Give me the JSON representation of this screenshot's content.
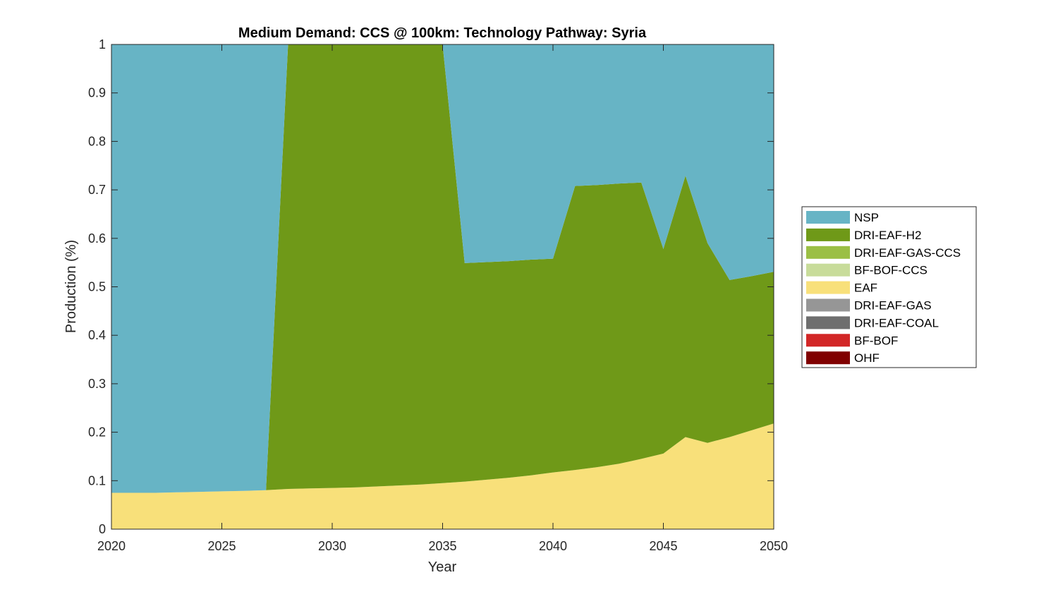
{
  "chart_data": {
    "type": "area",
    "stacked": true,
    "title": "Medium Demand: CCS @ 100km: Technology Pathway: Syria",
    "xlabel": "Year",
    "ylabel": "Production (%)",
    "xlim": [
      2020,
      2050
    ],
    "ylim": [
      0,
      1
    ],
    "xticks": [
      "2020",
      "2025",
      "2030",
      "2035",
      "2040",
      "2045",
      "2050"
    ],
    "yticks": [
      "0",
      "0.1",
      "0.2",
      "0.3",
      "0.4",
      "0.5",
      "0.6",
      "0.7",
      "0.8",
      "0.9",
      "1"
    ],
    "grid": false,
    "legend_placement": "right-outside",
    "x": [
      2020,
      2021,
      2022,
      2023,
      2024,
      2025,
      2026,
      2027,
      2028,
      2029,
      2030,
      2031,
      2032,
      2033,
      2034,
      2035,
      2036,
      2037,
      2038,
      2039,
      2040,
      2041,
      2042,
      2043,
      2044,
      2045,
      2046,
      2047,
      2048,
      2049,
      2050
    ],
    "series": [
      {
        "name": "OHF",
        "color": "#800000",
        "values": [
          0,
          0,
          0,
          0,
          0,
          0,
          0,
          0,
          0,
          0,
          0,
          0,
          0,
          0,
          0,
          0,
          0,
          0,
          0,
          0,
          0,
          0,
          0,
          0,
          0,
          0,
          0,
          0,
          0,
          0,
          0
        ]
      },
      {
        "name": "BF-BOF",
        "color": "#d22626",
        "values": [
          0,
          0,
          0,
          0,
          0,
          0,
          0,
          0,
          0,
          0,
          0,
          0,
          0,
          0,
          0,
          0,
          0,
          0,
          0,
          0,
          0,
          0,
          0,
          0,
          0,
          0,
          0,
          0,
          0,
          0,
          0
        ]
      },
      {
        "name": "DRI-EAF-COAL",
        "color": "#6e6e6e",
        "values": [
          0,
          0,
          0,
          0,
          0,
          0,
          0,
          0,
          0,
          0,
          0,
          0,
          0,
          0,
          0,
          0,
          0,
          0,
          0,
          0,
          0,
          0,
          0,
          0,
          0,
          0,
          0,
          0,
          0,
          0,
          0
        ]
      },
      {
        "name": "DRI-EAF-GAS",
        "color": "#969696",
        "values": [
          0,
          0,
          0,
          0,
          0,
          0,
          0,
          0,
          0,
          0,
          0,
          0,
          0,
          0,
          0,
          0,
          0,
          0,
          0,
          0,
          0,
          0,
          0,
          0,
          0,
          0,
          0,
          0,
          0,
          0,
          0
        ]
      },
      {
        "name": "EAF",
        "color": "#f8e07a",
        "values": [
          0.075,
          0.075,
          0.075,
          0.076,
          0.077,
          0.078,
          0.079,
          0.0805,
          0.083,
          0.084,
          0.085,
          0.086,
          0.088,
          0.09,
          0.092,
          0.095,
          0.098,
          0.102,
          0.106,
          0.111,
          0.117,
          0.122,
          0.128,
          0.135,
          0.145,
          0.156,
          0.19,
          0.178,
          0.19,
          0.204,
          0.218
        ]
      },
      {
        "name": "BF-BOF-CCS",
        "color": "#c8dc9a",
        "values": [
          0,
          0,
          0,
          0,
          0,
          0,
          0,
          0,
          0,
          0,
          0,
          0,
          0,
          0,
          0,
          0,
          0,
          0,
          0,
          0,
          0,
          0,
          0,
          0,
          0,
          0,
          0,
          0,
          0,
          0,
          0
        ]
      },
      {
        "name": "DRI-EAF-GAS-CCS",
        "color": "#9bbf45",
        "values": [
          0,
          0,
          0,
          0,
          0,
          0,
          0,
          0,
          0,
          0,
          0,
          0,
          0,
          0,
          0,
          0,
          0,
          0,
          0,
          0,
          0,
          0,
          0,
          0,
          0,
          0,
          0,
          0,
          0,
          0,
          0
        ]
      },
      {
        "name": "DRI-EAF-H2",
        "color": "#6f9918",
        "values": [
          0,
          0,
          0,
          0,
          0,
          0,
          0,
          0,
          0.917,
          0.916,
          0.915,
          0.914,
          0.912,
          0.91,
          0.908,
          0.905,
          0.451,
          0.449,
          0.447,
          0.445,
          0.441,
          0.586,
          0.582,
          0.578,
          0.57,
          0.422,
          0.539,
          0.412,
          0.324,
          0.318,
          0.313
        ]
      },
      {
        "name": "NSP",
        "color": "#67b4c5",
        "values": [
          0.925,
          0.925,
          0.925,
          0.924,
          0.923,
          0.922,
          0.921,
          0.9195,
          0,
          0,
          0,
          0,
          0,
          0,
          0,
          0,
          0.451,
          0.449,
          0.447,
          0.444,
          0.442,
          0.292,
          0.29,
          0.287,
          0.285,
          0.422,
          0.271,
          0.41,
          0.486,
          0.478,
          0.469
        ]
      }
    ],
    "legend": [
      "NSP",
      "DRI-EAF-H2",
      "DRI-EAF-GAS-CCS",
      "BF-BOF-CCS",
      "EAF",
      "DRI-EAF-GAS",
      "DRI-EAF-COAL",
      "BF-BOF",
      "OHF"
    ]
  }
}
